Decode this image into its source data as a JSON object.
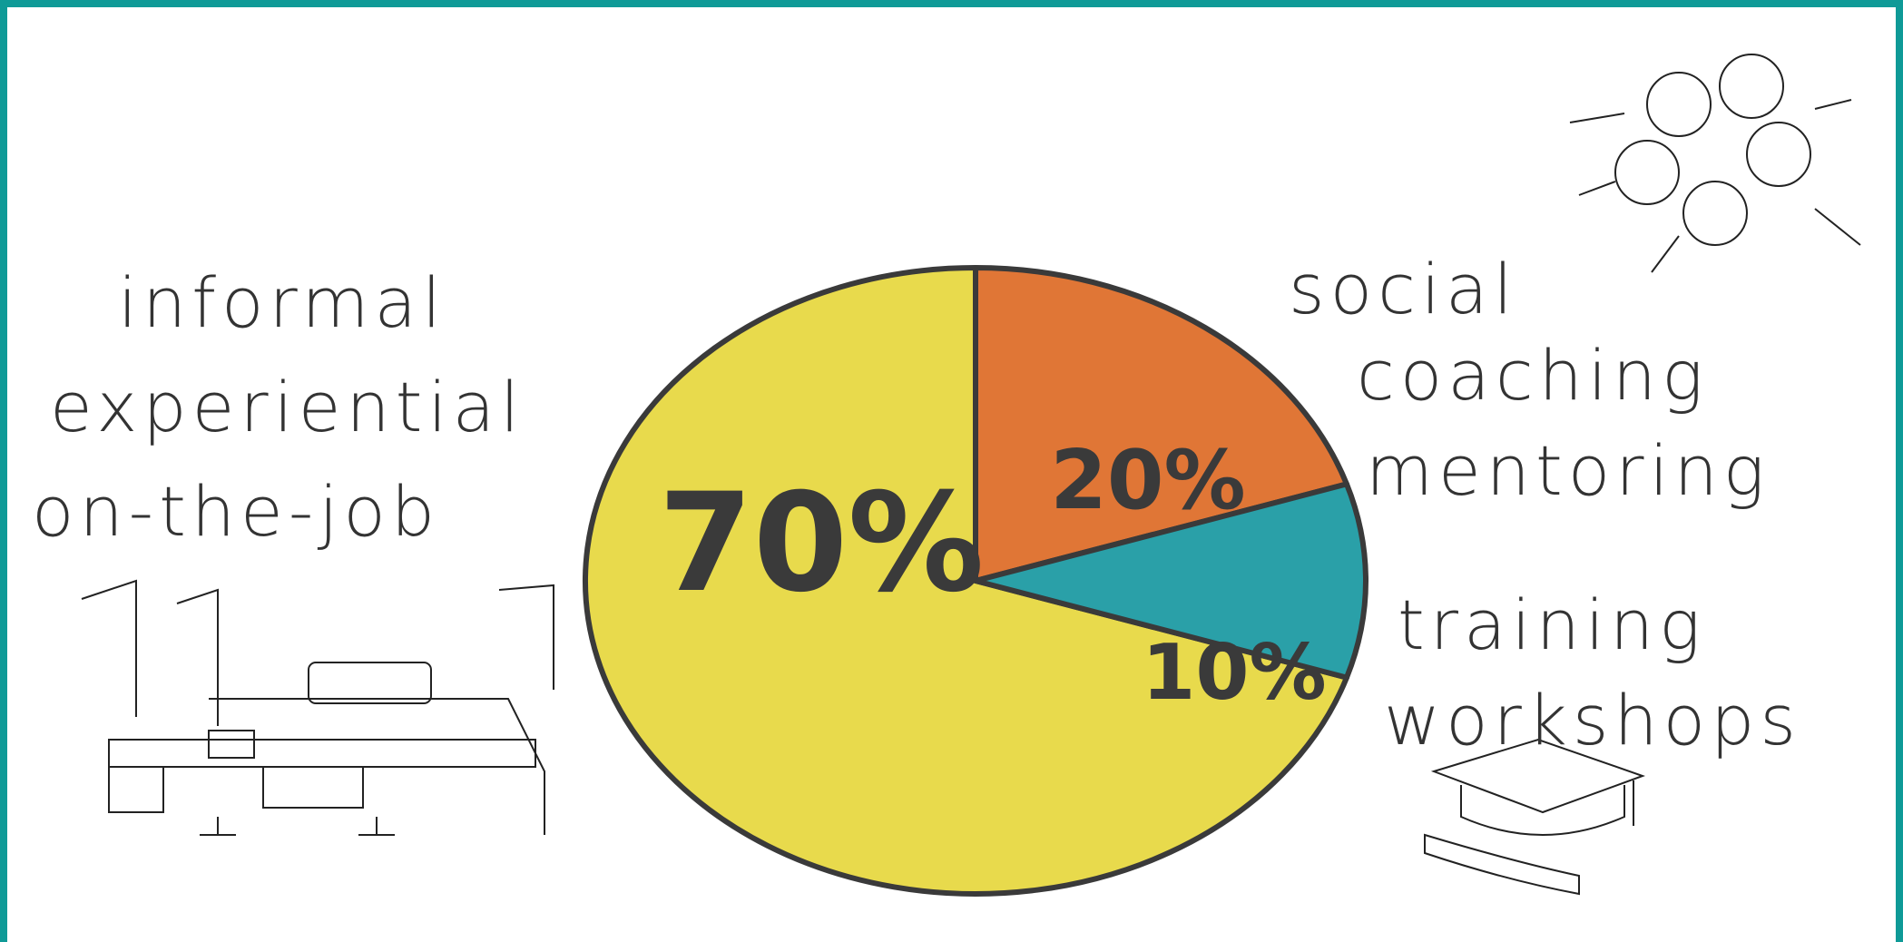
{
  "chart_data": {
    "type": "pie",
    "categories": [
      [
        "informal",
        "experiential",
        "on-the-job"
      ],
      [
        "social",
        "coaching",
        "mentoring"
      ],
      [
        "training",
        "workshops"
      ]
    ],
    "values": [
      70,
      20,
      10
    ],
    "value_labels": [
      "70%",
      "20%",
      "10%"
    ],
    "colors": [
      "#e8da4c",
      "#e07636",
      "#2aa0a8"
    ]
  }
}
